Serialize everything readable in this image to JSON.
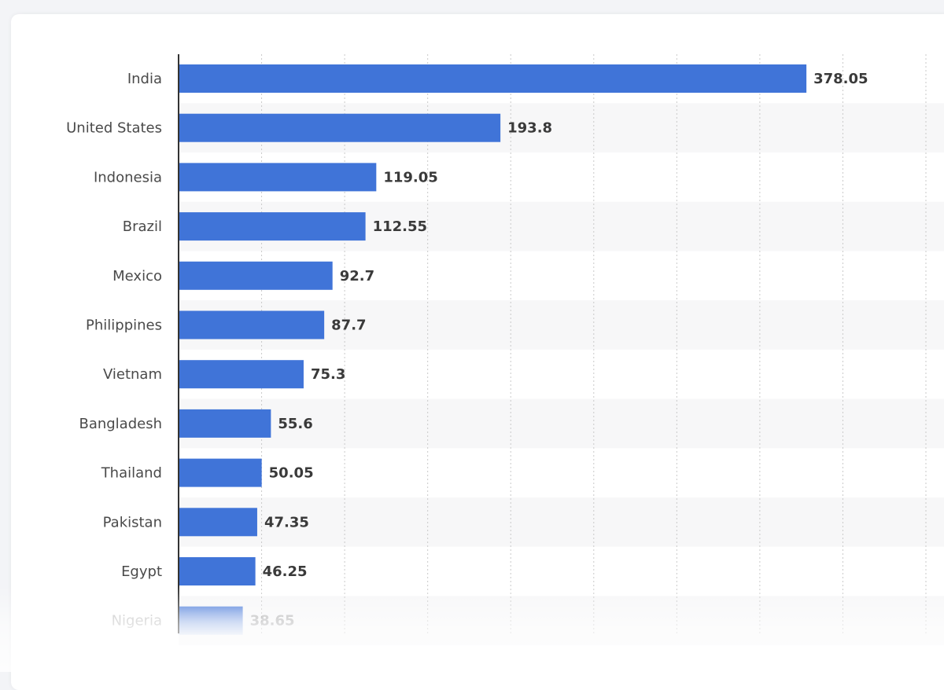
{
  "chart_data": {
    "type": "bar",
    "orientation": "horizontal",
    "categories": [
      "India",
      "United States",
      "Indonesia",
      "Brazil",
      "Mexico",
      "Philippines",
      "Vietnam",
      "Bangladesh",
      "Thailand",
      "Pakistan",
      "Egypt",
      "Nigeria"
    ],
    "values": [
      378.05,
      193.8,
      119.05,
      112.55,
      92.7,
      87.7,
      75.3,
      55.6,
      50.05,
      47.35,
      46.25,
      38.65
    ],
    "value_labels": [
      "378.05",
      "193.8",
      "119.05",
      "112.55",
      "92.7",
      "87.7",
      "75.3",
      "55.6",
      "50.05",
      "47.35",
      "46.25",
      "38.65"
    ],
    "xlim": [
      0,
      450
    ],
    "grid": true,
    "bar_color": "#4074d8",
    "alternating_row_color": "#f7f7f8"
  }
}
